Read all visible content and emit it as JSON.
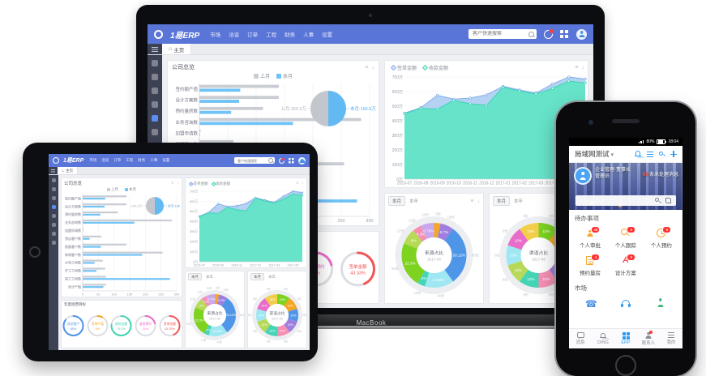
{
  "laptop": {
    "brand_label": "MacBook",
    "topbar": {
      "logo": "1易ERP",
      "menu": [
        "市场",
        "洽谈",
        "订单",
        "工程",
        "财务",
        "人事",
        "设置"
      ],
      "search_placeholder": "客户快速搜索"
    },
    "home_tab": "主页",
    "overview_title": "公司总览"
  },
  "tablet": {
    "topbar": {
      "logo": "1易ERP",
      "menu": [
        "市场",
        "洽谈",
        "订单",
        "工程",
        "财务",
        "人事",
        "设置"
      ],
      "search_placeholder": "客户快速搜索"
    },
    "home_tab": "主页",
    "overview_title": "公司总览"
  },
  "phone": {
    "statusbar": {
      "battery": "80%",
      "time": "18:04"
    },
    "navbar": {
      "title": "局域网测试"
    },
    "header": {
      "role": "企业管理·董事长",
      "name": "管理员",
      "msg_count": "60",
      "msg_label": "条未处理消息"
    },
    "todo": {
      "title": "待办事项",
      "items": [
        {
          "label": "个人审批",
          "badge": "48"
        },
        {
          "label": "个人跟踪",
          "badge": "5"
        },
        {
          "label": "个人预约",
          "badge": "9"
        },
        {
          "label": "预约量房",
          "badge": "4"
        },
        {
          "label": "设计方案",
          "badge": "8"
        }
      ]
    },
    "market": {
      "title": "市场"
    },
    "tabbar": [
      {
        "label": "消息"
      },
      {
        "label": "DING"
      },
      {
        "label": "ERP"
      },
      {
        "label": "联系人"
      },
      {
        "label": "我的"
      }
    ]
  },
  "colors": {
    "topbar_blue": "#5a75d8",
    "accent_blue": "#2d9cf4",
    "bar_gray": "#c9ccd3",
    "bar_blue": "#6fc3f7",
    "area_teal": "#66e3c9",
    "area_blue": "#b5d2f3",
    "red": "#f25555",
    "orange": "#f6a62c"
  },
  "chart_data": [
    {
      "id": "company-bars",
      "type": "bar",
      "orientation": "horizontal",
      "title": "公司总览",
      "categories": [
        "签约额产值",
        "设计方案数",
        "预约量房数",
        "业务咨询数",
        "加盟申请数",
        "到店客户数",
        "报备客户数",
        "新增客户数",
        "水电工地数",
        "开工工地数",
        "竣工工地数",
        "合计产值"
      ],
      "series": [
        {
          "name": "上月",
          "color": "#c9ccd3",
          "values": [
            140,
            140,
            112,
            285,
            2,
            60,
            140,
            255,
            64,
            72,
            74,
            74
          ]
        },
        {
          "name": "本月",
          "color": "#6fc3f7",
          "values": [
            72,
            70,
            56,
            165,
            1,
            22,
            58,
            190,
            38,
            44,
            278,
            66
          ]
        }
      ],
      "xlim": [
        0,
        300
      ],
      "xticks": [
        0,
        50,
        100,
        150,
        200,
        250,
        300
      ]
    },
    {
      "id": "overview-pie",
      "type": "pie",
      "slices": [
        {
          "label": "上月:160.2万",
          "value": 50,
          "color": "#c3c7cd"
        },
        {
          "label": "本月:166.5万",
          "value": 50,
          "color": "#63b9f2"
        }
      ]
    },
    {
      "id": "trend-area",
      "type": "area",
      "x": [
        "2016-07",
        "2016-08",
        "2016-09",
        "2016-10",
        "2016-11",
        "2016-12",
        "2017-01",
        "2017-02",
        "2017-03",
        "2017-04",
        "2017-05",
        "2017-06"
      ],
      "series": [
        {
          "name": "签单金额",
          "color": "#7fa9e8",
          "fill": "#b5d2f3",
          "values": [
            452,
            490,
            575,
            548,
            556,
            578,
            636,
            612,
            590,
            652,
            700,
            686
          ]
        },
        {
          "name": "收款金额",
          "color": "#38d2b4",
          "fill": "#66e3c9",
          "values": [
            448,
            486,
            480,
            540,
            516,
            506,
            630,
            604,
            584,
            622,
            672,
            660
          ]
        }
      ],
      "ylim": [
        0,
        700
      ],
      "ytick_step": 100,
      "yunit": "万"
    },
    {
      "id": "donut-source",
      "type": "pie",
      "title": "来源占比",
      "subtitle": "2017-06",
      "tabs": [
        "本月",
        "本年"
      ],
      "slices": [
        {
          "label": "3.2%",
          "value": 3.2,
          "color": "#f5a623",
          "outer": "8份"
        },
        {
          "label": "6.7%",
          "value": 6.7,
          "color": "#a07ee0",
          "outer": "18份"
        },
        {
          "label": "30.12%",
          "value": 30.12,
          "color": "#4f96e8",
          "outer": "80份"
        },
        {
          "label": "14.59%",
          "value": 14.59,
          "color": "#9fe7f2",
          "outer": "40份"
        },
        {
          "label": "4%",
          "value": 4.02,
          "color": "#45d4b5",
          "outer": "10份"
        },
        {
          "label": "22.3%",
          "value": 22.3,
          "color": "#7ed321",
          "outer": "60份"
        },
        {
          "label": "8%",
          "value": 7.98,
          "color": "#b6d957",
          "outer": "22份"
        },
        {
          "label": "4.3%",
          "value": 4.3,
          "color": "#f78fb3",
          "outer": "12份"
        },
        {
          "label": "6.79%",
          "value": 6.79,
          "color": "#c9a7eb",
          "outer": "20份"
        }
      ]
    },
    {
      "id": "donut-channel",
      "type": "pie",
      "title": "渠道占比",
      "subtitle": "2017-06",
      "tabs": [
        "本月",
        "本年"
      ],
      "slices": [
        {
          "label": "10%",
          "value": 10,
          "color": "#7ed321",
          "outer": "8份"
        },
        {
          "label": "10%",
          "value": 10,
          "color": "#f5a623",
          "outer": "8份"
        },
        {
          "label": "10%",
          "value": 10,
          "color": "#4f96e8",
          "outer": "8份"
        },
        {
          "label": "10%",
          "value": 10,
          "color": "#a07ee0",
          "outer": "8份"
        },
        {
          "label": "10%",
          "value": 10,
          "color": "#f78fb3",
          "outer": "8份"
        },
        {
          "label": "10%",
          "value": 10,
          "color": "#45d4b5",
          "outer": "8份"
        },
        {
          "label": "10%",
          "value": 10,
          "color": "#b6d957",
          "outer": "8份"
        },
        {
          "label": "10%",
          "value": 10,
          "color": "#9fe7f2",
          "outer": "8份"
        },
        {
          "label": "10%",
          "value": 10,
          "color": "#e86cc8",
          "outer": "8份"
        },
        {
          "label": "10%",
          "value": 10,
          "color": "#f2cf4b",
          "outer": "8份"
        }
      ]
    },
    {
      "id": "goal-gauges",
      "type": "gauge",
      "panel_title": "年度经营目标",
      "gauges": [
        {
          "label": "成交客户",
          "value": 85,
          "color": "#4f96e8"
        },
        {
          "label": "签单产值",
          "value": 8,
          "color": "#f5a623"
        },
        {
          "label": "收款金额",
          "value": 76.5,
          "color": "#45d4b5"
        },
        {
          "label": "量房预约",
          "value": 21,
          "color": "#e86cc8"
        },
        {
          "label": "签单金额",
          "value": 43.33,
          "color": "#f25555"
        }
      ]
    }
  ]
}
